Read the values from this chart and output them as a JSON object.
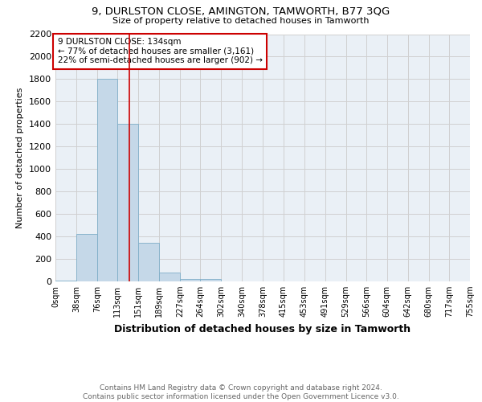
{
  "title": "9, DURLSTON CLOSE, AMINGTON, TAMWORTH, B77 3QG",
  "subtitle": "Size of property relative to detached houses in Tamworth",
  "xlabel": "Distribution of detached houses by size in Tamworth",
  "ylabel": "Number of detached properties",
  "bar_edges": [
    0,
    38,
    76,
    113,
    151,
    189,
    227,
    264,
    302,
    340,
    378,
    415,
    453,
    491,
    529,
    566,
    604,
    642,
    680,
    717,
    755
  ],
  "bar_heights": [
    10,
    420,
    1800,
    1400,
    340,
    80,
    25,
    20,
    0,
    0,
    0,
    0,
    0,
    0,
    0,
    0,
    0,
    0,
    0,
    0
  ],
  "bar_color": "#c5d8e8",
  "bar_edgecolor": "#7faec8",
  "property_line_x": 134,
  "property_line_color": "#cc0000",
  "annotation_text": "9 DURLSTON CLOSE: 134sqm\n← 77% of detached houses are smaller (3,161)\n22% of semi-detached houses are larger (902) →",
  "annotation_box_color": "#cc0000",
  "ylim": [
    0,
    2200
  ],
  "yticks": [
    0,
    200,
    400,
    600,
    800,
    1000,
    1200,
    1400,
    1600,
    1800,
    2000,
    2200
  ],
  "tick_labels": [
    "0sqm",
    "38sqm",
    "76sqm",
    "113sqm",
    "151sqm",
    "189sqm",
    "227sqm",
    "264sqm",
    "302sqm",
    "340sqm",
    "378sqm",
    "415sqm",
    "453sqm",
    "491sqm",
    "529sqm",
    "566sqm",
    "604sqm",
    "642sqm",
    "680sqm",
    "717sqm",
    "755sqm"
  ],
  "grid_color": "#d0d0d0",
  "bg_color": "#eaf0f6",
  "footer": "Contains HM Land Registry data © Crown copyright and database right 2024.\nContains public sector information licensed under the Open Government Licence v3.0."
}
